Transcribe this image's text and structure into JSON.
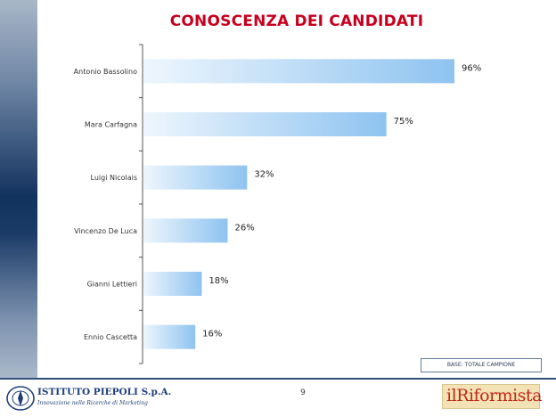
{
  "title": "CONOSCENZA DEI CANDIDATI",
  "base_label": "BASE: TOTALE CAMPIONE",
  "page_number": "9",
  "logo_left": {
    "name": "ISTITUTO PIEPOLI S.p.A.",
    "tagline": "Innovazione nelle Ricerche di Marketing"
  },
  "logo_right": {
    "text": "ilRiformista"
  },
  "colors": {
    "title": "#c8001e",
    "bar_dark": "#8ec3f0",
    "bar_light": "#eef6fd",
    "sidebar": "#12325e"
  },
  "chart_data": {
    "type": "bar",
    "orientation": "horizontal",
    "title": "CONOSCENZA DEI CANDIDATI",
    "categories": [
      "Antonio Bassolino",
      "Mara Carfagna",
      "Luigi Nicolais",
      "Vincenzo De Luca",
      "Gianni Lettieri",
      "Ennio Cascetta"
    ],
    "values": [
      96,
      75,
      32,
      26,
      18,
      16
    ],
    "value_labels": [
      "96%",
      "75%",
      "32%",
      "26%",
      "18%",
      "16%"
    ],
    "unit": "%",
    "xlim": [
      0,
      100
    ],
    "grid": false,
    "legend": "none"
  }
}
